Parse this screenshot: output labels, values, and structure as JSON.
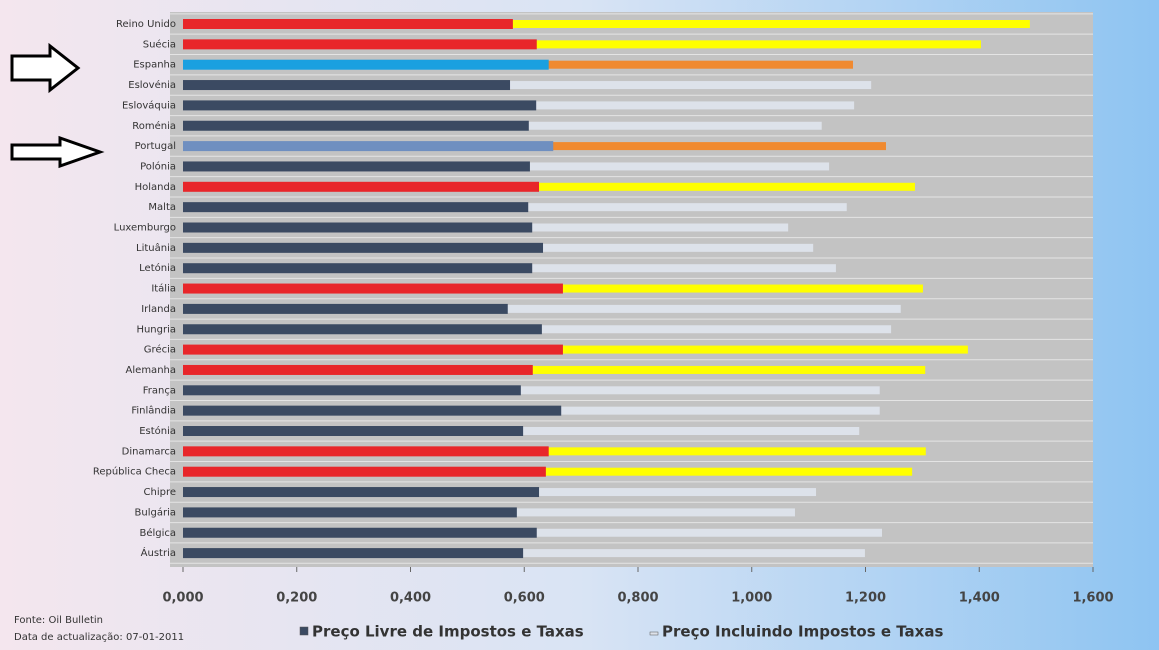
{
  "chart_data": {
    "type": "bar",
    "orientation": "horizontal",
    "categories": [
      "Reino Unido",
      "Suécia",
      "Espanha",
      "Eslovénia",
      "Eslováquia",
      "Roménia",
      "Portugal",
      "Polónia",
      "Holanda",
      "Malta",
      "Luxemburgo",
      "Lituânia",
      "Letónia",
      "Itália",
      "Irlanda",
      "Hungria",
      "Grécia",
      "Alemanha",
      "França",
      "Finlândia",
      "Estónia",
      "Dinamarca",
      "República Checa",
      "Chipre",
      "Bulgária",
      "Bélgica",
      "Áustria"
    ],
    "series": [
      {
        "name": "Preço Incluindo Impostos e Taxas",
        "color": "#dde2ea",
        "colors": [
          "#ffff00",
          "#ffff00",
          "#f08a30",
          "#dde2ea",
          "#dde2ea",
          "#dde2ea",
          "#f08a30",
          "#dde2ea",
          "#ffff00",
          "#dde2ea",
          "#dde2ea",
          "#dde2ea",
          "#dde2ea",
          "#ffff00",
          "#dde2ea",
          "#dde2ea",
          "#ffff00",
          "#ffff00",
          "#dde2ea",
          "#dde2ea",
          "#dde2ea",
          "#ffff00",
          "#ffff00",
          "#dde2ea",
          "#dde2ea",
          "#dde2ea",
          "#dde2ea"
        ],
        "values": [
          1.489,
          1.403,
          1.178,
          1.21,
          1.18,
          1.123,
          1.236,
          1.136,
          1.287,
          1.167,
          1.064,
          1.108,
          1.148,
          1.301,
          1.262,
          1.245,
          1.38,
          1.305,
          1.225,
          1.225,
          1.189,
          1.306,
          1.282,
          1.113,
          1.076,
          1.229,
          1.199
        ]
      },
      {
        "name": "Preço Livre de Impostos e Taxas",
        "color": "#3b4a62",
        "colors": [
          "#e8262a",
          "#e8262a",
          "#1aa0e0",
          "#3b4a62",
          "#3b4a62",
          "#3b4a62",
          "#6f8fc0",
          "#3b4a62",
          "#e8262a",
          "#3b4a62",
          "#3b4a62",
          "#3b4a62",
          "#3b4a62",
          "#e8262a",
          "#3b4a62",
          "#3b4a62",
          "#e8262a",
          "#e8262a",
          "#3b4a62",
          "#3b4a62",
          "#3b4a62",
          "#e8262a",
          "#e8262a",
          "#3b4a62",
          "#3b4a62",
          "#3b4a62",
          "#3b4a62"
        ],
        "values": [
          0.58,
          0.622,
          0.643,
          0.575,
          0.621,
          0.608,
          0.651,
          0.61,
          0.626,
          0.607,
          0.614,
          0.633,
          0.614,
          0.668,
          0.571,
          0.631,
          0.668,
          0.615,
          0.594,
          0.665,
          0.598,
          0.643,
          0.638,
          0.626,
          0.587,
          0.622,
          0.598
        ]
      }
    ],
    "xlim": [
      0,
      1.6
    ],
    "xticks": [
      {
        "value": 0,
        "label": "0,000"
      },
      {
        "value": 0.2,
        "label": "0,200"
      },
      {
        "value": 0.4,
        "label": "0,400"
      },
      {
        "value": 0.6,
        "label": "0,600"
      },
      {
        "value": 0.8,
        "label": "0,800"
      },
      {
        "value": 1.0,
        "label": "1,000"
      },
      {
        "value": 1.2,
        "label": "1,200"
      },
      {
        "value": 1.4,
        "label": "1,400"
      },
      {
        "value": 1.6,
        "label": "1,600"
      }
    ],
    "source": "Fonte: Oil Bulletin",
    "update_date": "Data de actualização: 07-01-2011",
    "legend_position": "bottom"
  }
}
